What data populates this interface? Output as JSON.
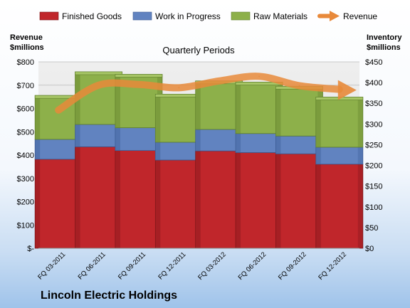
{
  "chart_data": {
    "type": "bar",
    "stacked": true,
    "title": "Lincoln Electric Holdings",
    "subtitle": "Quarterly Periods",
    "categories": [
      "FQ 03-2011",
      "FQ 06-2011",
      "FQ 09-2011",
      "FQ 12-2011",
      "FQ 03-2012",
      "FQ 06-2012",
      "FQ 09-2012",
      "FQ 12-2012"
    ],
    "left_axis": {
      "label_line1": "Revenue",
      "label_line2": "$millions",
      "ylim": [
        0,
        800
      ],
      "ticks": [
        "$-",
        "$100",
        "$200",
        "$300",
        "$400",
        "$500",
        "$600",
        "$700",
        "$800"
      ]
    },
    "right_axis": {
      "label_line1": "Inventory",
      "label_line2": "$millions",
      "ylim": [
        0,
        450
      ],
      "ticks": [
        "$0",
        "$50",
        "$100",
        "$150",
        "$200",
        "$250",
        "$300",
        "$350",
        "$400",
        "$450"
      ]
    },
    "series": [
      {
        "name": "Finished Goods",
        "axis": "right",
        "color": "#c0262b",
        "values": [
          215,
          245,
          236,
          213,
          235,
          231,
          228,
          203
        ]
      },
      {
        "name": "Work in Progress",
        "axis": "right",
        "color": "#6183c0",
        "values": [
          48,
          54,
          55,
          43,
          52,
          46,
          43,
          41
        ]
      },
      {
        "name": "Raw Materials",
        "axis": "right",
        "color": "#8db04a",
        "values": [
          106,
          127,
          129,
          116,
          117,
          124,
          120,
          121
        ]
      },
      {
        "name": "Revenue",
        "axis": "left",
        "type": "line",
        "color": "#e8893a",
        "values": [
          593,
          700,
          703,
          689,
          718,
          738,
          698,
          682
        ]
      }
    ],
    "grid": true,
    "legend": "top"
  }
}
